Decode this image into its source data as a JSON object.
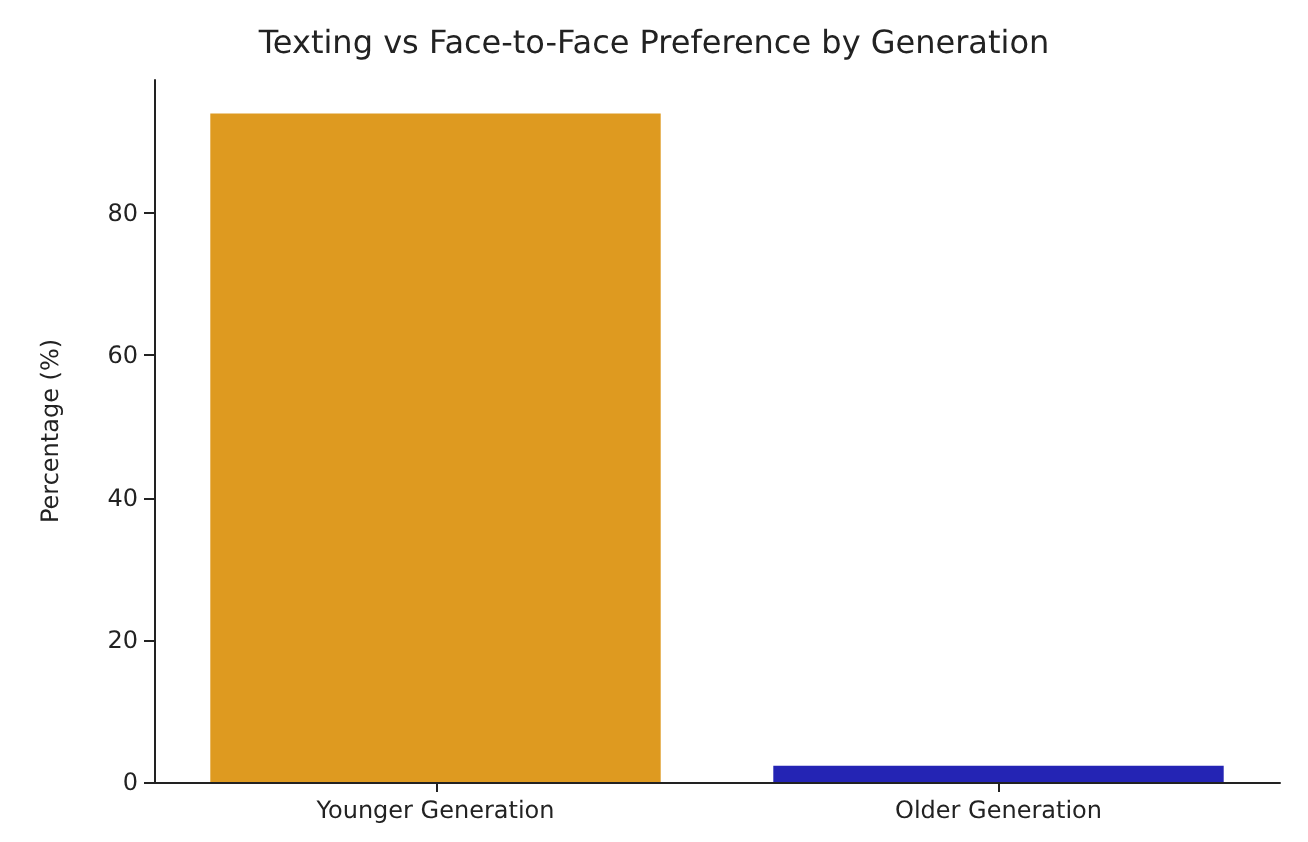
{
  "chart_data": {
    "type": "bar",
    "title": "Texting vs Face-to-Face Preference by Generation",
    "ylabel": "Percentage (%)",
    "categories": [
      "Younger Generation",
      "Older Generation"
    ],
    "values": [
      94,
      2.3
    ],
    "colors": [
      "#de9a20",
      "#2424b4"
    ],
    "ylim": [
      0,
      98.7
    ],
    "yticks": [
      0,
      20,
      40,
      60,
      80
    ],
    "grid": false
  }
}
